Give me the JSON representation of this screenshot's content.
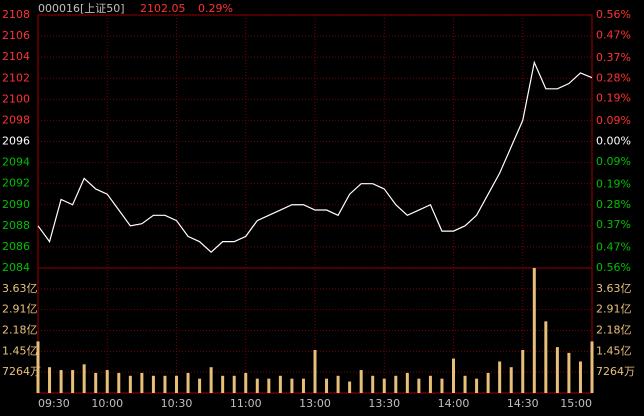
{
  "chart_data": [
    {
      "type": "line",
      "title": "000016[上证50]",
      "last_price": "2102.05",
      "last_change": "0.29%",
      "categories": [
        "09:30",
        null,
        null,
        null,
        null,
        null,
        "10:00",
        null,
        null,
        null,
        null,
        null,
        "10:30",
        null,
        null,
        null,
        null,
        null,
        "11:00",
        null,
        null,
        null,
        null,
        null,
        "13:00",
        null,
        null,
        null,
        null,
        null,
        "13:30",
        null,
        null,
        null,
        null,
        null,
        "14:00",
        null,
        null,
        null,
        null,
        null,
        "14:30",
        null,
        null,
        null,
        null,
        null,
        "15:00"
      ],
      "values": [
        2088,
        2086.5,
        2090.5,
        2090,
        2092.5,
        2091.5,
        2091,
        2089.5,
        2088,
        2088.2,
        2089,
        2089,
        2088.5,
        2087,
        2086.5,
        2085.5,
        2086.5,
        2086.5,
        2087,
        2088.5,
        2089,
        2089.5,
        2090,
        2090,
        2089.5,
        2089.5,
        2089,
        2091,
        2092,
        2092,
        2091.5,
        2090,
        2089,
        2089.5,
        2090,
        2087.5,
        2087.5,
        2088,
        2089,
        2091,
        2093,
        2095.5,
        2098,
        2103.5,
        2101,
        2101,
        2101.5,
        2102.5,
        2102.05
      ],
      "color": "#ffffff",
      "ylim": [
        2084,
        2108
      ],
      "yticks": [
        2108,
        2106,
        2104,
        2102,
        2100,
        2098,
        2096,
        2094,
        2092,
        2090,
        2088,
        2086,
        2084
      ],
      "y2lim": [
        -0.56,
        0.56
      ],
      "y2ticks": [
        {
          "value": 0.56,
          "label": "0.56%"
        },
        {
          "value": 0.47,
          "label": "0.47%"
        },
        {
          "value": 0.37,
          "label": "0.37%"
        },
        {
          "value": 0.28,
          "label": "0.28%"
        },
        {
          "value": 0.19,
          "label": "0.19%"
        },
        {
          "value": 0.09,
          "label": "0.09%"
        },
        {
          "value": 0,
          "label": "0.00%"
        },
        {
          "value": -0.09,
          "label": "0.09%"
        },
        {
          "value": -0.19,
          "label": "0.19%"
        },
        {
          "value": -0.28,
          "label": "0.28%"
        },
        {
          "value": -0.37,
          "label": "0.37%"
        },
        {
          "value": -0.47,
          "label": "0.47%"
        },
        {
          "value": -0.56,
          "label": "0.56%"
        }
      ],
      "up_color": "#ff3232",
      "down_color": "#00c000",
      "flat_color": "#ffffff",
      "grid": true
    },
    {
      "type": "bar",
      "values": [
        1.8,
        0.9,
        0.8,
        0.8,
        1.0,
        0.7,
        0.8,
        0.7,
        0.6,
        0.7,
        0.6,
        0.6,
        0.6,
        0.7,
        0.5,
        0.9,
        0.6,
        0.6,
        0.7,
        0.5,
        0.5,
        0.6,
        0.5,
        0.5,
        1.5,
        0.5,
        0.6,
        0.4,
        0.8,
        0.6,
        0.5,
        0.6,
        0.7,
        0.5,
        0.6,
        0.5,
        1.2,
        0.6,
        0.5,
        0.7,
        1.1,
        0.9,
        1.5,
        4.36,
        2.5,
        1.6,
        1.4,
        1.1,
        1.8
      ],
      "color": "#e8c07a",
      "ylim": [
        0,
        4.36
      ],
      "yticks": [
        {
          "value": 3.63,
          "label": "3.63亿"
        },
        {
          "value": 2.91,
          "label": "2.91亿"
        },
        {
          "value": 2.18,
          "label": "2.18亿"
        },
        {
          "value": 1.45,
          "label": "1.45亿"
        },
        {
          "value": 0.7264,
          "label": "7264万"
        }
      ],
      "grid": true
    }
  ]
}
